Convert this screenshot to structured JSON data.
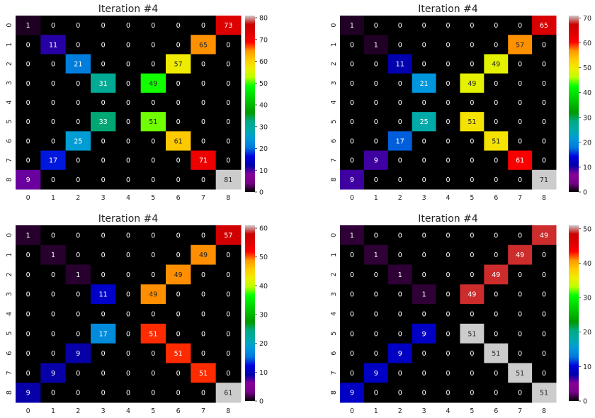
{
  "chart_data": [
    {
      "type": "heatmap",
      "title": "Iteration #4",
      "x_ticks": [
        "0",
        "1",
        "2",
        "3",
        "4",
        "5",
        "6",
        "7",
        "8"
      ],
      "y_ticks": [
        "0",
        "1",
        "2",
        "3",
        "4",
        "5",
        "6",
        "7",
        "8"
      ],
      "vmin": 0,
      "vmax": 81,
      "colorbar_ticks": [
        "0",
        "10",
        "20",
        "30",
        "40",
        "50",
        "60",
        "70",
        "80"
      ],
      "colorbar_values": [
        0,
        10,
        20,
        30,
        40,
        50,
        60,
        70,
        80
      ],
      "colormap": "nipy_spectral",
      "matrix": [
        [
          1,
          0,
          0,
          0,
          0,
          0,
          0,
          0,
          73
        ],
        [
          0,
          11,
          0,
          0,
          0,
          0,
          0,
          65,
          0
        ],
        [
          0,
          0,
          21,
          0,
          0,
          0,
          57,
          0,
          0
        ],
        [
          0,
          0,
          0,
          31,
          0,
          49,
          0,
          0,
          0
        ],
        [
          0,
          0,
          0,
          0,
          0,
          0,
          0,
          0,
          0
        ],
        [
          0,
          0,
          0,
          33,
          0,
          51,
          0,
          0,
          0
        ],
        [
          0,
          0,
          25,
          0,
          0,
          0,
          61,
          0,
          0
        ],
        [
          0,
          17,
          0,
          0,
          0,
          0,
          0,
          71,
          0
        ],
        [
          9,
          0,
          0,
          0,
          0,
          0,
          0,
          0,
          81
        ]
      ]
    },
    {
      "type": "heatmap",
      "title": "Iteration #4",
      "x_ticks": [
        "0",
        "1",
        "2",
        "3",
        "4",
        "5",
        "6",
        "7",
        "8"
      ],
      "y_ticks": [
        "0",
        "1",
        "2",
        "3",
        "4",
        "5",
        "6",
        "7",
        "8"
      ],
      "vmin": 0,
      "vmax": 71,
      "colorbar_ticks": [
        "0",
        "10",
        "20",
        "30",
        "40",
        "50",
        "60",
        "70"
      ],
      "colorbar_values": [
        0,
        10,
        20,
        30,
        40,
        50,
        60,
        70
      ],
      "colormap": "nipy_spectral",
      "matrix": [
        [
          1,
          0,
          0,
          0,
          0,
          0,
          0,
          0,
          65
        ],
        [
          0,
          1,
          0,
          0,
          0,
          0,
          0,
          57,
          0
        ],
        [
          0,
          0,
          11,
          0,
          0,
          0,
          49,
          0,
          0
        ],
        [
          0,
          0,
          0,
          21,
          0,
          49,
          0,
          0,
          0
        ],
        [
          0,
          0,
          0,
          0,
          0,
          0,
          0,
          0,
          0
        ],
        [
          0,
          0,
          0,
          25,
          0,
          51,
          0,
          0,
          0
        ],
        [
          0,
          0,
          17,
          0,
          0,
          0,
          51,
          0,
          0
        ],
        [
          0,
          9,
          0,
          0,
          0,
          0,
          0,
          61,
          0
        ],
        [
          9,
          0,
          0,
          0,
          0,
          0,
          0,
          0,
          71
        ]
      ]
    },
    {
      "type": "heatmap",
      "title": "Iteration #4",
      "x_ticks": [
        "0",
        "1",
        "2",
        "3",
        "4",
        "5",
        "6",
        "7",
        "8"
      ],
      "y_ticks": [
        "0",
        "1",
        "2",
        "3",
        "4",
        "5",
        "6",
        "7",
        "8"
      ],
      "vmin": 0,
      "vmax": 61,
      "colorbar_ticks": [
        "0",
        "10",
        "20",
        "30",
        "40",
        "50",
        "60"
      ],
      "colorbar_values": [
        0,
        10,
        20,
        30,
        40,
        50,
        60
      ],
      "colormap": "nipy_spectral",
      "matrix": [
        [
          1,
          0,
          0,
          0,
          0,
          0,
          0,
          0,
          57
        ],
        [
          0,
          1,
          0,
          0,
          0,
          0,
          0,
          49,
          0
        ],
        [
          0,
          0,
          1,
          0,
          0,
          0,
          49,
          0,
          0
        ],
        [
          0,
          0,
          0,
          11,
          0,
          49,
          0,
          0,
          0
        ],
        [
          0,
          0,
          0,
          0,
          0,
          0,
          0,
          0,
          0
        ],
        [
          0,
          0,
          0,
          17,
          0,
          51,
          0,
          0,
          0
        ],
        [
          0,
          0,
          9,
          0,
          0,
          0,
          51,
          0,
          0
        ],
        [
          0,
          9,
          0,
          0,
          0,
          0,
          0,
          51,
          0
        ],
        [
          9,
          0,
          0,
          0,
          0,
          0,
          0,
          0,
          61
        ]
      ]
    },
    {
      "type": "heatmap",
      "title": "Iteration #4",
      "x_ticks": [
        "0",
        "1",
        "2",
        "3",
        "4",
        "5",
        "6",
        "7",
        "8"
      ],
      "y_ticks": [
        "0",
        "1",
        "2",
        "3",
        "4",
        "5",
        "6",
        "7",
        "8"
      ],
      "vmin": 0,
      "vmax": 51,
      "colorbar_ticks": [
        "0",
        "10",
        "20",
        "30",
        "40",
        "50"
      ],
      "colorbar_values": [
        0,
        10,
        20,
        30,
        40,
        50
      ],
      "colormap": "nipy_spectral",
      "matrix": [
        [
          1,
          0,
          0,
          0,
          0,
          0,
          0,
          0,
          49
        ],
        [
          0,
          1,
          0,
          0,
          0,
          0,
          0,
          49,
          0
        ],
        [
          0,
          0,
          1,
          0,
          0,
          0,
          49,
          0,
          0
        ],
        [
          0,
          0,
          0,
          1,
          0,
          49,
          0,
          0,
          0
        ],
        [
          0,
          0,
          0,
          0,
          0,
          0,
          0,
          0,
          0
        ],
        [
          0,
          0,
          0,
          9,
          0,
          51,
          0,
          0,
          0
        ],
        [
          0,
          0,
          9,
          0,
          0,
          0,
          51,
          0,
          0
        ],
        [
          0,
          9,
          0,
          0,
          0,
          0,
          0,
          51,
          0
        ],
        [
          9,
          0,
          0,
          0,
          0,
          0,
          0,
          0,
          51
        ]
      ]
    }
  ]
}
